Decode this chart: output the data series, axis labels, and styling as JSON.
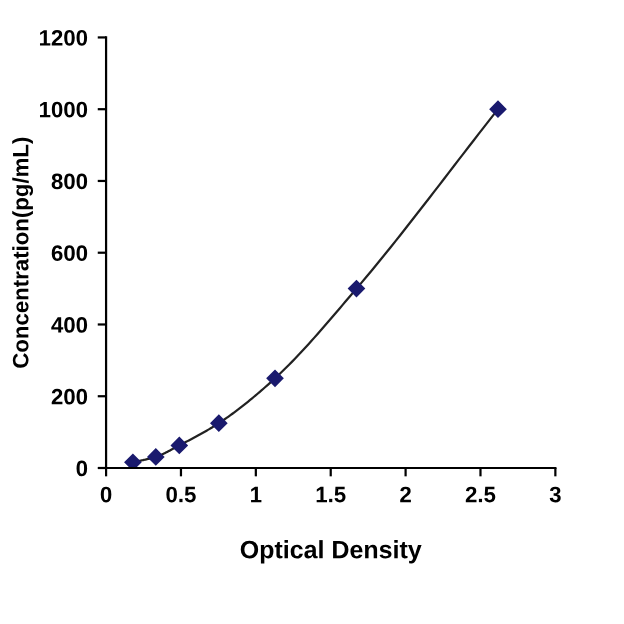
{
  "chart_data": {
    "type": "line",
    "xlabel": "Optical Density",
    "ylabel": "Concentration(pg/mL)",
    "x": [
      0.179,
      0.332,
      0.489,
      0.753,
      1.128,
      1.672,
      2.617
    ],
    "series": [
      {
        "color": "#1a1a6e",
        "values": [
          16,
          31,
          63,
          125,
          250,
          500,
          1000
        ]
      }
    ],
    "marker": "diamond",
    "line_style": "solid",
    "grid": false,
    "legend": false,
    "xlim": [
      0,
      3
    ],
    "xticks": [
      0,
      0.5,
      1,
      1.5,
      2,
      2.5,
      3
    ],
    "ylim": [
      0,
      1200
    ],
    "yticks": [
      0,
      200,
      400,
      600,
      800,
      1000,
      1200
    ]
  }
}
